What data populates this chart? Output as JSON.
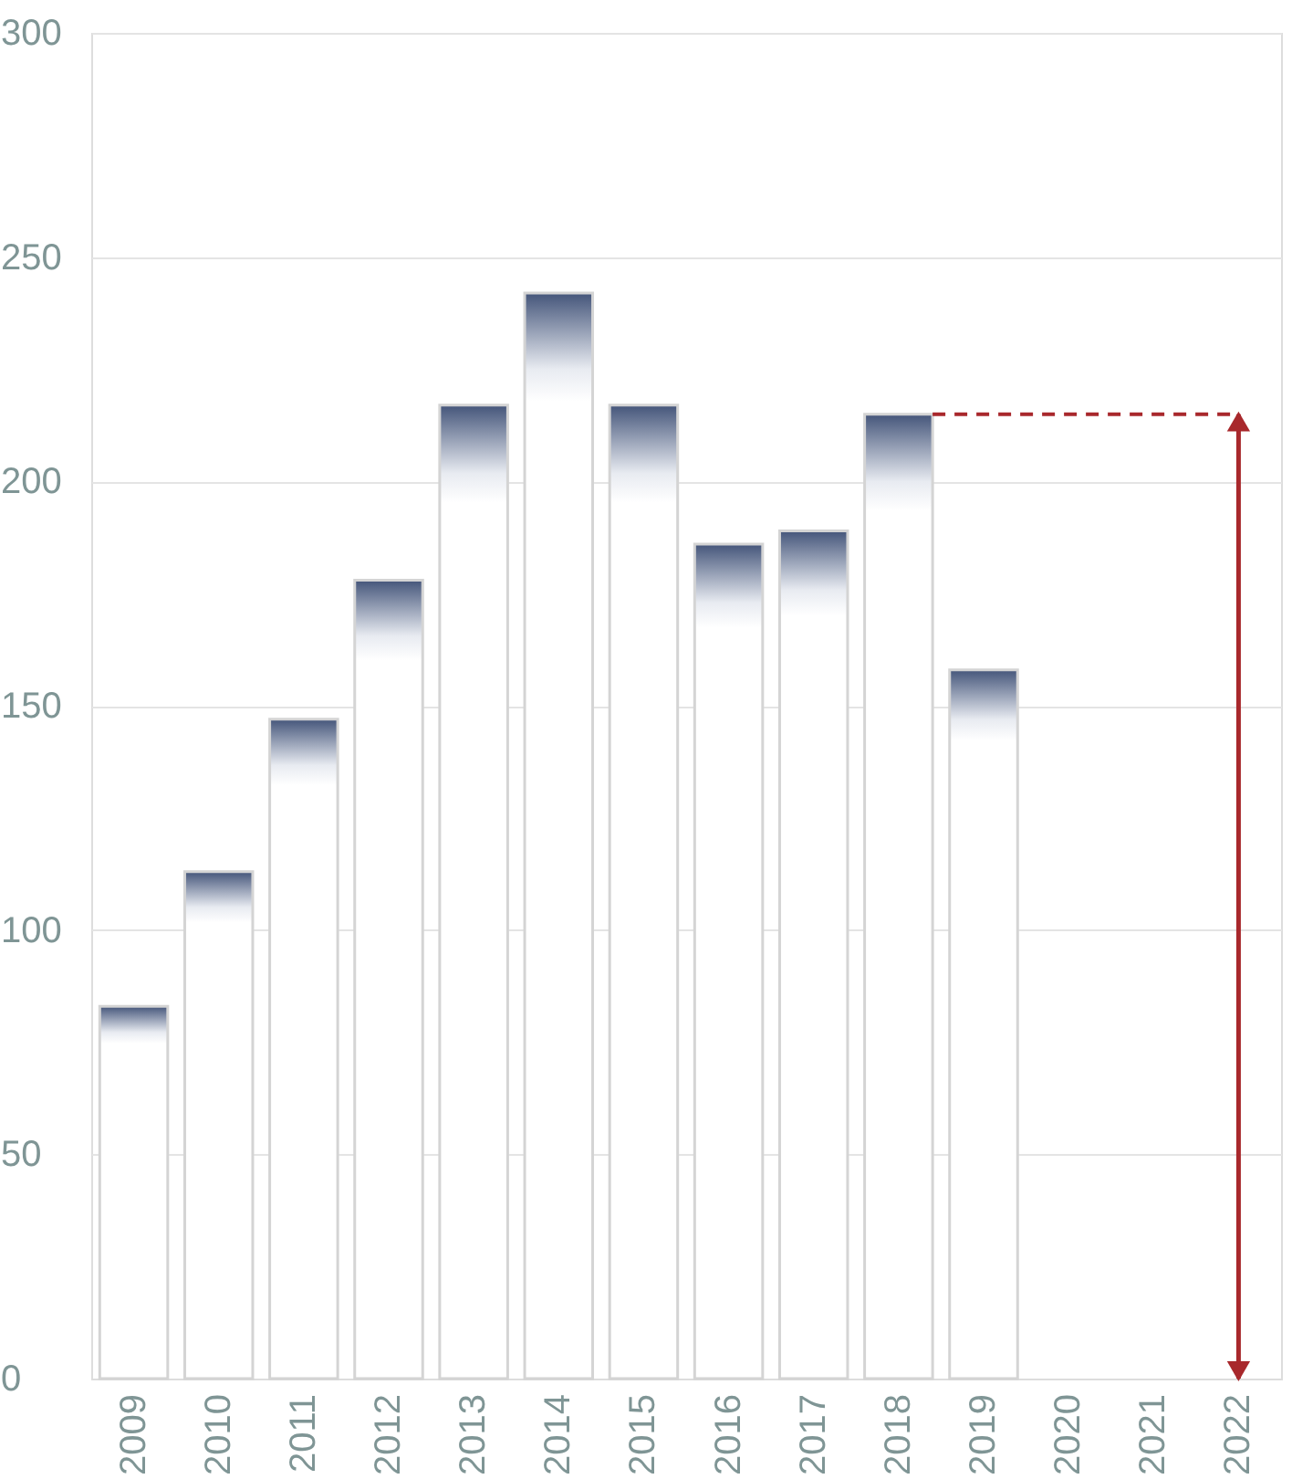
{
  "chart_data": {
    "type": "bar",
    "categories": [
      "2009",
      "2010",
      "2011",
      "2012",
      "2013",
      "2014",
      "2015",
      "2016",
      "2017",
      "2018",
      "2019",
      "2020",
      "2021",
      "2022"
    ],
    "series": [
      {
        "color": "#d4d4d4",
        "values": [
          83,
          113,
          147,
          178,
          217,
          242,
          217,
          186,
          189,
          215,
          158,
          null,
          null,
          null
        ]
      }
    ],
    "ylim": [
      0,
      300
    ],
    "yticks": [
      0,
      50,
      100,
      150,
      200,
      250,
      300
    ],
    "grid": "y",
    "ref_lines": [
      {
        "axis": "y",
        "value": 215,
        "color": "#a8282c",
        "line_style": "dashed"
      }
    ]
  }
}
